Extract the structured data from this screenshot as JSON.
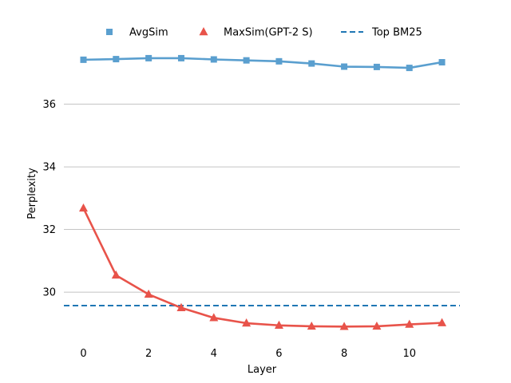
{
  "chart_data": {
    "type": "line",
    "xlabel": "Layer",
    "ylabel": "Perplexity",
    "x": [
      0,
      1,
      2,
      3,
      4,
      5,
      6,
      7,
      8,
      9,
      10,
      11
    ],
    "xlim": [
      -0.6,
      11.55
    ],
    "ylim": [
      28.45,
      37.85
    ],
    "xticks": [
      0,
      2,
      4,
      6,
      8,
      10
    ],
    "yticks": [
      30,
      32,
      34,
      36
    ],
    "grid": "horizontal",
    "legend_position": "top",
    "series": [
      {
        "name": "AvgSim",
        "marker": "square",
        "color": "#5a9fcf",
        "values": [
          37.42,
          37.44,
          37.47,
          37.47,
          37.43,
          37.4,
          37.37,
          37.3,
          37.2,
          37.19,
          37.16,
          37.34
        ]
      },
      {
        "name": "MaxSim(GPT-2 S)",
        "marker": "triangle",
        "color": "#e8534a",
        "values": [
          32.68,
          30.54,
          29.93,
          29.5,
          29.18,
          29.01,
          28.94,
          28.91,
          28.9,
          28.91,
          28.97,
          29.02
        ]
      }
    ],
    "reference_lines": [
      {
        "name": "Top BM25",
        "value": 29.57,
        "color": "#1f77b4",
        "style": "dashed"
      }
    ]
  }
}
